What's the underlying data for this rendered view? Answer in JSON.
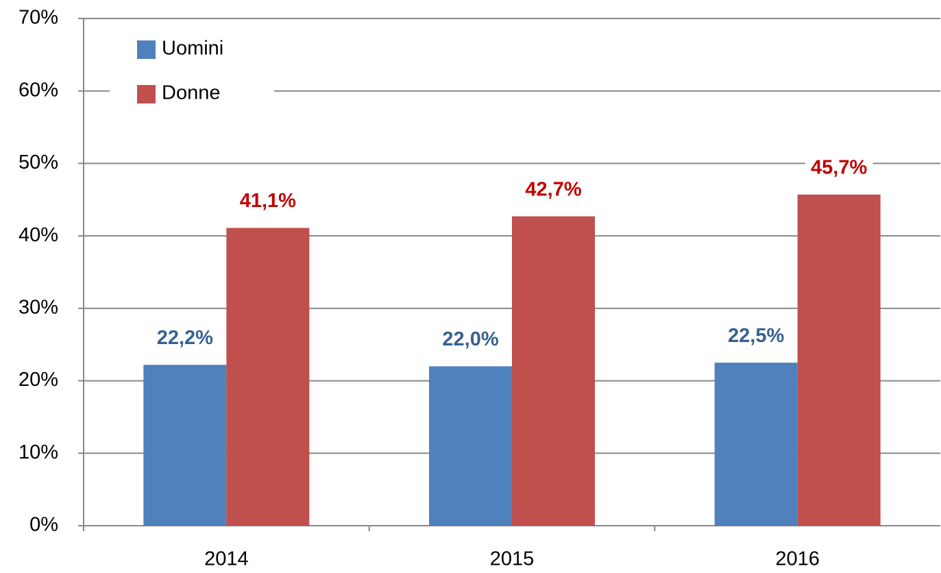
{
  "chart_data": {
    "type": "bar",
    "categories": [
      "2014",
      "2015",
      "2016"
    ],
    "series": [
      {
        "name": "Uomini",
        "color": "#4f81bd",
        "label_color": "#376092",
        "values": [
          22.2,
          22.0,
          22.5
        ],
        "value_labels": [
          "22,2%",
          "22,0%",
          "22,5%"
        ]
      },
      {
        "name": "Donne",
        "color": "#c0504d",
        "label_color": "#c00000",
        "values": [
          41.1,
          42.7,
          45.7
        ],
        "value_labels": [
          "41,1%",
          "42,7%",
          "45,7%"
        ]
      }
    ],
    "ylim": [
      0,
      70
    ],
    "yticks": [
      {
        "value": 0,
        "label": "0%"
      },
      {
        "value": 10,
        "label": "10%"
      },
      {
        "value": 20,
        "label": "20%"
      },
      {
        "value": 30,
        "label": "30%"
      },
      {
        "value": 40,
        "label": "40%"
      },
      {
        "value": 50,
        "label": "50%"
      },
      {
        "value": 60,
        "label": "60%"
      },
      {
        "value": 70,
        "label": "70%"
      }
    ],
    "grid": true,
    "legend": "top-left"
  }
}
